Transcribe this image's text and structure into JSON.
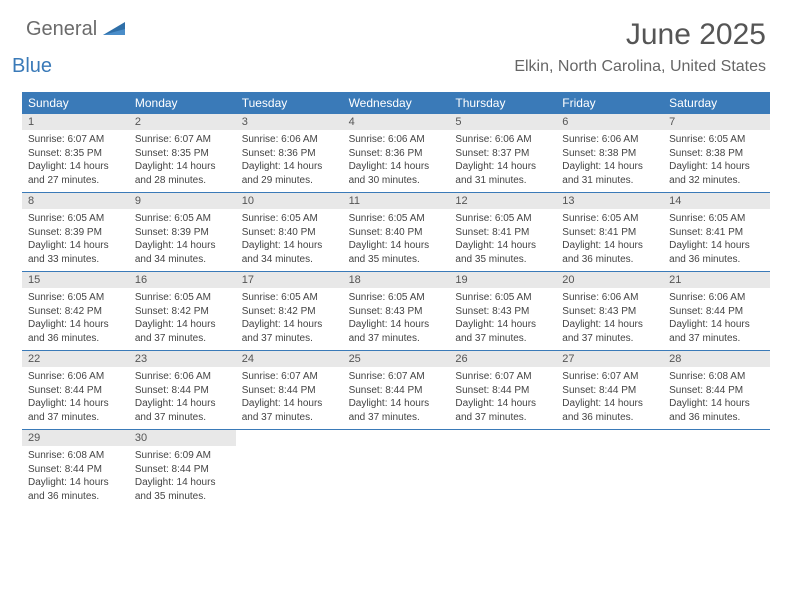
{
  "brand": {
    "part1": "General",
    "part2": "Blue"
  },
  "title": "June 2025",
  "location": "Elkin, North Carolina, United States",
  "colors": {
    "header_bg": "#3a7ab8",
    "header_text": "#ffffff",
    "daynum_bg": "#e8e8e8",
    "row_border": "#3a7ab8",
    "body_text": "#444444",
    "title_text": "#555555",
    "logo_gray": "#6b6b6b",
    "logo_blue": "#3a7ab8"
  },
  "weekdays": [
    "Sunday",
    "Monday",
    "Tuesday",
    "Wednesday",
    "Thursday",
    "Friday",
    "Saturday"
  ],
  "weeks": [
    [
      {
        "n": "1",
        "sr": "Sunrise: 6:07 AM",
        "ss": "Sunset: 8:35 PM",
        "dl": "Daylight: 14 hours and 27 minutes."
      },
      {
        "n": "2",
        "sr": "Sunrise: 6:07 AM",
        "ss": "Sunset: 8:35 PM",
        "dl": "Daylight: 14 hours and 28 minutes."
      },
      {
        "n": "3",
        "sr": "Sunrise: 6:06 AM",
        "ss": "Sunset: 8:36 PM",
        "dl": "Daylight: 14 hours and 29 minutes."
      },
      {
        "n": "4",
        "sr": "Sunrise: 6:06 AM",
        "ss": "Sunset: 8:36 PM",
        "dl": "Daylight: 14 hours and 30 minutes."
      },
      {
        "n": "5",
        "sr": "Sunrise: 6:06 AM",
        "ss": "Sunset: 8:37 PM",
        "dl": "Daylight: 14 hours and 31 minutes."
      },
      {
        "n": "6",
        "sr": "Sunrise: 6:06 AM",
        "ss": "Sunset: 8:38 PM",
        "dl": "Daylight: 14 hours and 31 minutes."
      },
      {
        "n": "7",
        "sr": "Sunrise: 6:05 AM",
        "ss": "Sunset: 8:38 PM",
        "dl": "Daylight: 14 hours and 32 minutes."
      }
    ],
    [
      {
        "n": "8",
        "sr": "Sunrise: 6:05 AM",
        "ss": "Sunset: 8:39 PM",
        "dl": "Daylight: 14 hours and 33 minutes."
      },
      {
        "n": "9",
        "sr": "Sunrise: 6:05 AM",
        "ss": "Sunset: 8:39 PM",
        "dl": "Daylight: 14 hours and 34 minutes."
      },
      {
        "n": "10",
        "sr": "Sunrise: 6:05 AM",
        "ss": "Sunset: 8:40 PM",
        "dl": "Daylight: 14 hours and 34 minutes."
      },
      {
        "n": "11",
        "sr": "Sunrise: 6:05 AM",
        "ss": "Sunset: 8:40 PM",
        "dl": "Daylight: 14 hours and 35 minutes."
      },
      {
        "n": "12",
        "sr": "Sunrise: 6:05 AM",
        "ss": "Sunset: 8:41 PM",
        "dl": "Daylight: 14 hours and 35 minutes."
      },
      {
        "n": "13",
        "sr": "Sunrise: 6:05 AM",
        "ss": "Sunset: 8:41 PM",
        "dl": "Daylight: 14 hours and 36 minutes."
      },
      {
        "n": "14",
        "sr": "Sunrise: 6:05 AM",
        "ss": "Sunset: 8:41 PM",
        "dl": "Daylight: 14 hours and 36 minutes."
      }
    ],
    [
      {
        "n": "15",
        "sr": "Sunrise: 6:05 AM",
        "ss": "Sunset: 8:42 PM",
        "dl": "Daylight: 14 hours and 36 minutes."
      },
      {
        "n": "16",
        "sr": "Sunrise: 6:05 AM",
        "ss": "Sunset: 8:42 PM",
        "dl": "Daylight: 14 hours and 37 minutes."
      },
      {
        "n": "17",
        "sr": "Sunrise: 6:05 AM",
        "ss": "Sunset: 8:42 PM",
        "dl": "Daylight: 14 hours and 37 minutes."
      },
      {
        "n": "18",
        "sr": "Sunrise: 6:05 AM",
        "ss": "Sunset: 8:43 PM",
        "dl": "Daylight: 14 hours and 37 minutes."
      },
      {
        "n": "19",
        "sr": "Sunrise: 6:05 AM",
        "ss": "Sunset: 8:43 PM",
        "dl": "Daylight: 14 hours and 37 minutes."
      },
      {
        "n": "20",
        "sr": "Sunrise: 6:06 AM",
        "ss": "Sunset: 8:43 PM",
        "dl": "Daylight: 14 hours and 37 minutes."
      },
      {
        "n": "21",
        "sr": "Sunrise: 6:06 AM",
        "ss": "Sunset: 8:44 PM",
        "dl": "Daylight: 14 hours and 37 minutes."
      }
    ],
    [
      {
        "n": "22",
        "sr": "Sunrise: 6:06 AM",
        "ss": "Sunset: 8:44 PM",
        "dl": "Daylight: 14 hours and 37 minutes."
      },
      {
        "n": "23",
        "sr": "Sunrise: 6:06 AM",
        "ss": "Sunset: 8:44 PM",
        "dl": "Daylight: 14 hours and 37 minutes."
      },
      {
        "n": "24",
        "sr": "Sunrise: 6:07 AM",
        "ss": "Sunset: 8:44 PM",
        "dl": "Daylight: 14 hours and 37 minutes."
      },
      {
        "n": "25",
        "sr": "Sunrise: 6:07 AM",
        "ss": "Sunset: 8:44 PM",
        "dl": "Daylight: 14 hours and 37 minutes."
      },
      {
        "n": "26",
        "sr": "Sunrise: 6:07 AM",
        "ss": "Sunset: 8:44 PM",
        "dl": "Daylight: 14 hours and 37 minutes."
      },
      {
        "n": "27",
        "sr": "Sunrise: 6:07 AM",
        "ss": "Sunset: 8:44 PM",
        "dl": "Daylight: 14 hours and 36 minutes."
      },
      {
        "n": "28",
        "sr": "Sunrise: 6:08 AM",
        "ss": "Sunset: 8:44 PM",
        "dl": "Daylight: 14 hours and 36 minutes."
      }
    ],
    [
      {
        "n": "29",
        "sr": "Sunrise: 6:08 AM",
        "ss": "Sunset: 8:44 PM",
        "dl": "Daylight: 14 hours and 36 minutes."
      },
      {
        "n": "30",
        "sr": "Sunrise: 6:09 AM",
        "ss": "Sunset: 8:44 PM",
        "dl": "Daylight: 14 hours and 35 minutes."
      },
      {
        "n": "",
        "sr": "",
        "ss": "",
        "dl": ""
      },
      {
        "n": "",
        "sr": "",
        "ss": "",
        "dl": ""
      },
      {
        "n": "",
        "sr": "",
        "ss": "",
        "dl": ""
      },
      {
        "n": "",
        "sr": "",
        "ss": "",
        "dl": ""
      },
      {
        "n": "",
        "sr": "",
        "ss": "",
        "dl": ""
      }
    ]
  ]
}
